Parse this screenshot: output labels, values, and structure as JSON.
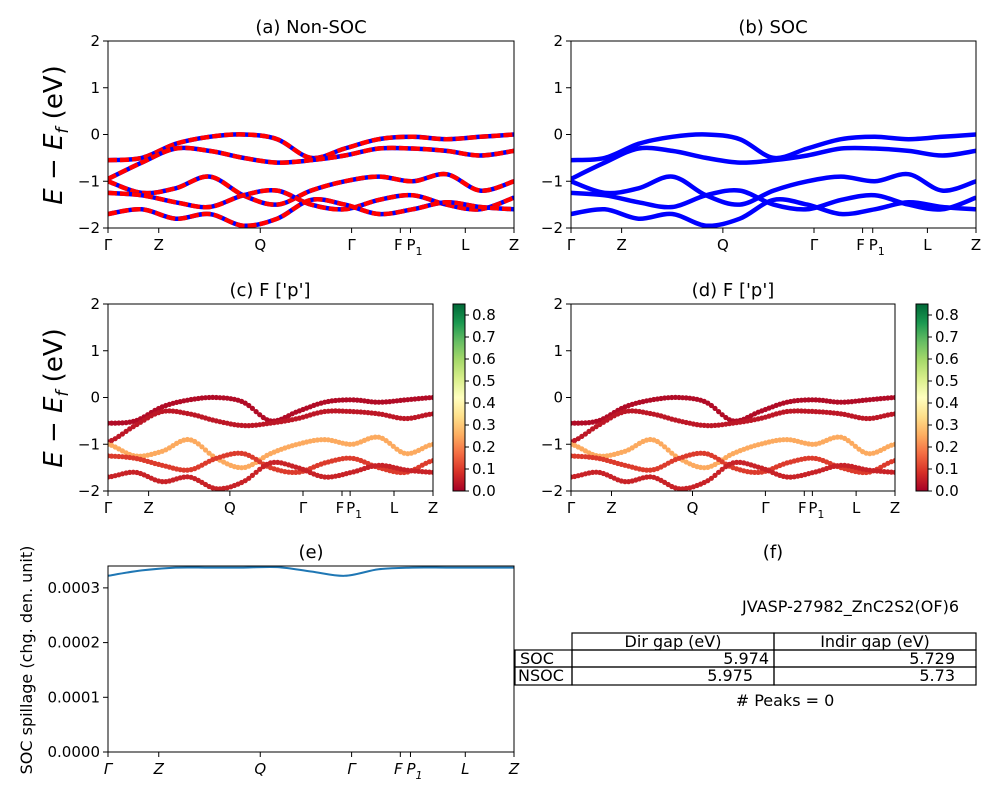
{
  "figure": {
    "jid_label": "JVASP-27982_ZnC2S2(OF)6",
    "peaks_label": "# Peaks = 0"
  },
  "panels": {
    "a_title": "(a) Non-SOC",
    "b_title": "(b) SOC",
    "c_title": "(c)  F ['p']",
    "d_title": "(d) F ['p']",
    "e_title": "(e)",
    "f_title": "(f)"
  },
  "axes": {
    "band_ylabel": "E − E",
    "band_ylabel_sub": "f",
    "band_ylabel_unit": " (eV)",
    "band_yticks": [
      "2",
      "1",
      "0",
      "−1",
      "−2"
    ],
    "kpath_labels": [
      "Γ",
      "Z",
      "Q",
      "Γ",
      "F",
      "P",
      "L",
      "Z"
    ],
    "p1_sub": "1",
    "spill_ylabel": "SOC spillage (chg. den. unit)",
    "spill_yticks": [
      "0.0003",
      "0.0002",
      "0.0001",
      "0.0000"
    ],
    "colorbar_ticks": [
      "0.8",
      "0.7",
      "0.6",
      "0.5",
      "0.4",
      "0.3",
      "0.2",
      "0.1",
      "0.0"
    ]
  },
  "table": {
    "header": [
      "Dir gap (eV)",
      "Indir gap (eV)"
    ],
    "rows": [
      {
        "label": "SOC",
        "dir": "5.974",
        "indir": "5.729"
      },
      {
        "label": "NSOC",
        "dir": "5.975",
        "indir": "5.73"
      }
    ]
  },
  "colors": {
    "nsoc_band": "#ff0000",
    "soc_band": "#0000ff",
    "spillage_line": "#1f77b4",
    "cbar_high": "#006837",
    "cbar_low": "#a50026"
  },
  "chart_data": [
    {
      "type": "line",
      "title": "(a) Non-SOC",
      "ylabel": "E − E_f (eV)",
      "ylim": [
        -2,
        2
      ],
      "x_ticks": [
        "Γ",
        "Z",
        "Q",
        "Γ",
        "F",
        "P1",
        "L",
        "Z"
      ],
      "series": [
        {
          "values": [
            -0.55,
            -0.5,
            -0.2,
            -0.05,
            0.0,
            -0.1,
            -0.5,
            -0.3,
            -0.1,
            -0.05,
            -0.1,
            -0.05,
            0.0
          ]
        },
        {
          "values": [
            -0.95,
            -0.6,
            -0.3,
            -0.35,
            -0.5,
            -0.6,
            -0.55,
            -0.45,
            -0.3,
            -0.3,
            -0.35,
            -0.45,
            -0.35
          ]
        },
        {
          "values": [
            -1.0,
            -1.25,
            -1.15,
            -0.9,
            -1.3,
            -1.5,
            -1.2,
            -1.0,
            -0.9,
            -1.0,
            -0.85,
            -1.2,
            -1.0
          ]
        },
        {
          "values": [
            -1.25,
            -1.3,
            -1.45,
            -1.55,
            -1.3,
            -1.2,
            -1.5,
            -1.6,
            -1.4,
            -1.3,
            -1.5,
            -1.6,
            -1.35
          ]
        },
        {
          "values": [
            -1.7,
            -1.6,
            -1.8,
            -1.7,
            -1.95,
            -1.8,
            -1.4,
            -1.5,
            -1.7,
            -1.6,
            -1.45,
            -1.55,
            -1.6
          ]
        }
      ]
    },
    {
      "type": "line",
      "title": "(b) SOC",
      "ylim": [
        -2,
        2
      ],
      "x_ticks": [
        "Γ",
        "Z",
        "Q",
        "Γ",
        "F",
        "P1",
        "L",
        "Z"
      ],
      "series": [
        {
          "values": [
            -0.55,
            -0.5,
            -0.2,
            -0.05,
            0.0,
            -0.1,
            -0.5,
            -0.3,
            -0.1,
            -0.05,
            -0.1,
            -0.05,
            0.0
          ]
        },
        {
          "values": [
            -0.95,
            -0.6,
            -0.3,
            -0.35,
            -0.5,
            -0.6,
            -0.55,
            -0.45,
            -0.3,
            -0.3,
            -0.35,
            -0.45,
            -0.35
          ]
        },
        {
          "values": [
            -1.0,
            -1.25,
            -1.15,
            -0.9,
            -1.3,
            -1.5,
            -1.2,
            -1.0,
            -0.9,
            -1.0,
            -0.85,
            -1.2,
            -1.0
          ]
        },
        {
          "values": [
            -1.25,
            -1.3,
            -1.45,
            -1.55,
            -1.3,
            -1.2,
            -1.5,
            -1.6,
            -1.4,
            -1.3,
            -1.5,
            -1.6,
            -1.35
          ]
        },
        {
          "values": [
            -1.7,
            -1.6,
            -1.8,
            -1.7,
            -1.95,
            -1.8,
            -1.4,
            -1.5,
            -1.7,
            -1.6,
            -1.45,
            -1.55,
            -1.6
          ]
        }
      ]
    },
    {
      "type": "scatter",
      "title": "(c)  F ['p']",
      "ylim": [
        -2,
        2
      ],
      "colorbar_range": [
        0.0,
        0.85
      ]
    },
    {
      "type": "scatter",
      "title": "(d) F ['p']",
      "ylim": [
        -2,
        2
      ],
      "colorbar_range": [
        0.0,
        0.85
      ]
    },
    {
      "type": "line",
      "title": "(e)",
      "ylabel": "SOC spillage (chg. den. unit)",
      "ylim": [
        0.0,
        0.00034
      ],
      "x_ticks": [
        "Γ",
        "Z",
        "Q",
        "Γ",
        "F",
        "P1",
        "L",
        "Z"
      ],
      "series": [
        {
          "values": [
            0.000322,
            0.000332,
            0.000337,
            0.000337,
            0.000337,
            0.000338,
            0.00033,
            0.000322,
            0.000334,
            0.000337,
            0.000337,
            0.000337,
            0.000337
          ]
        }
      ]
    }
  ]
}
